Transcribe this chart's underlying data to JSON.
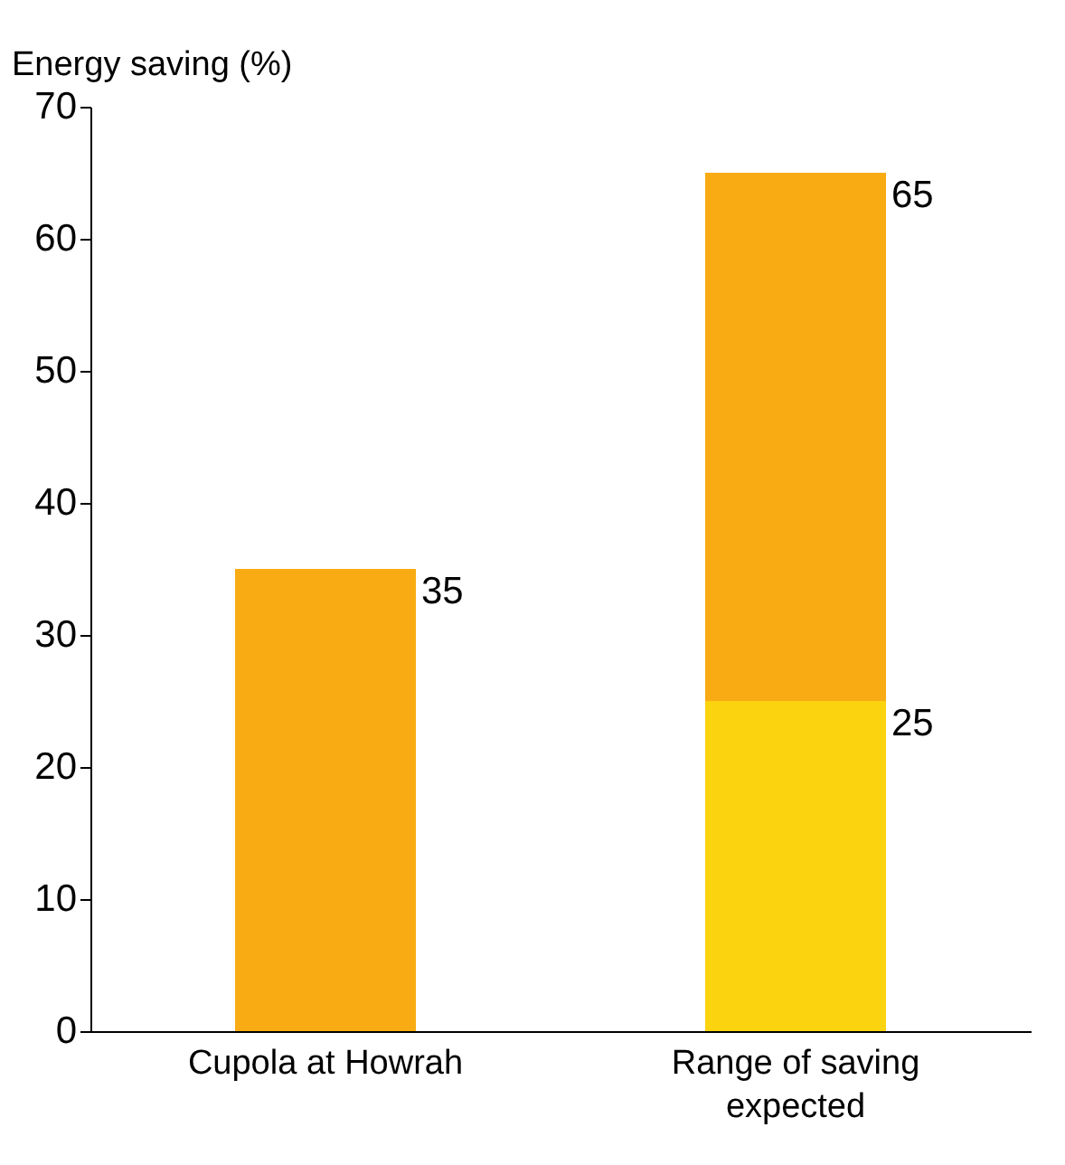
{
  "chart_data": {
    "type": "bar",
    "ylabel": "Energy saving (%)",
    "categories": [
      "Cupola at Howrah",
      "Range of saving expected"
    ],
    "stacked": true,
    "series": [
      {
        "color": "#fbd30f",
        "values": [
          null,
          25
        ],
        "value_labels": [
          null,
          "25"
        ]
      },
      {
        "color": "#f9ab14",
        "values": [
          35,
          40
        ]
      }
    ],
    "totals": [
      "35",
      "65"
    ],
    "ylim": [
      0,
      70
    ],
    "yticks": [
      0,
      10,
      20,
      30,
      40,
      50,
      60,
      70
    ],
    "grid": false
  }
}
